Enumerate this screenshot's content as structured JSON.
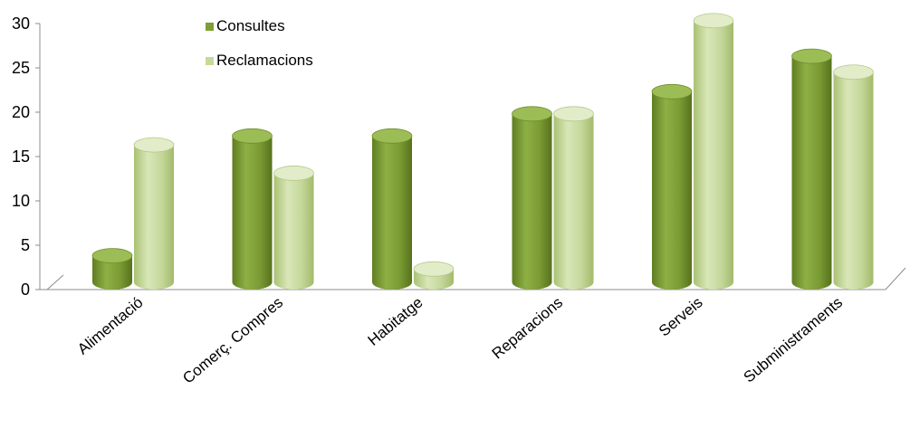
{
  "chart_data": {
    "type": "bar",
    "title": "",
    "xlabel": "",
    "ylabel": "",
    "categories": [
      "Alimentació",
      "Comerç. Compres",
      "Habitatge",
      "Reparacions",
      "Serveis",
      "Subministraments"
    ],
    "series": [
      {
        "name": "Consultes",
        "values": [
          3,
          16.5,
          16.5,
          19,
          21.5,
          25.5
        ],
        "color": "#7e9f36"
      },
      {
        "name": "Reclamacions",
        "values": [
          15.5,
          12.3,
          1.5,
          19,
          29.5,
          23.7
        ],
        "color": "#c6d99b"
      }
    ],
    "yticks": [
      0,
      5,
      10,
      15,
      20,
      25,
      30
    ],
    "ylim": [
      0,
      30
    ],
    "grid": false,
    "legend_position": "top-left"
  }
}
